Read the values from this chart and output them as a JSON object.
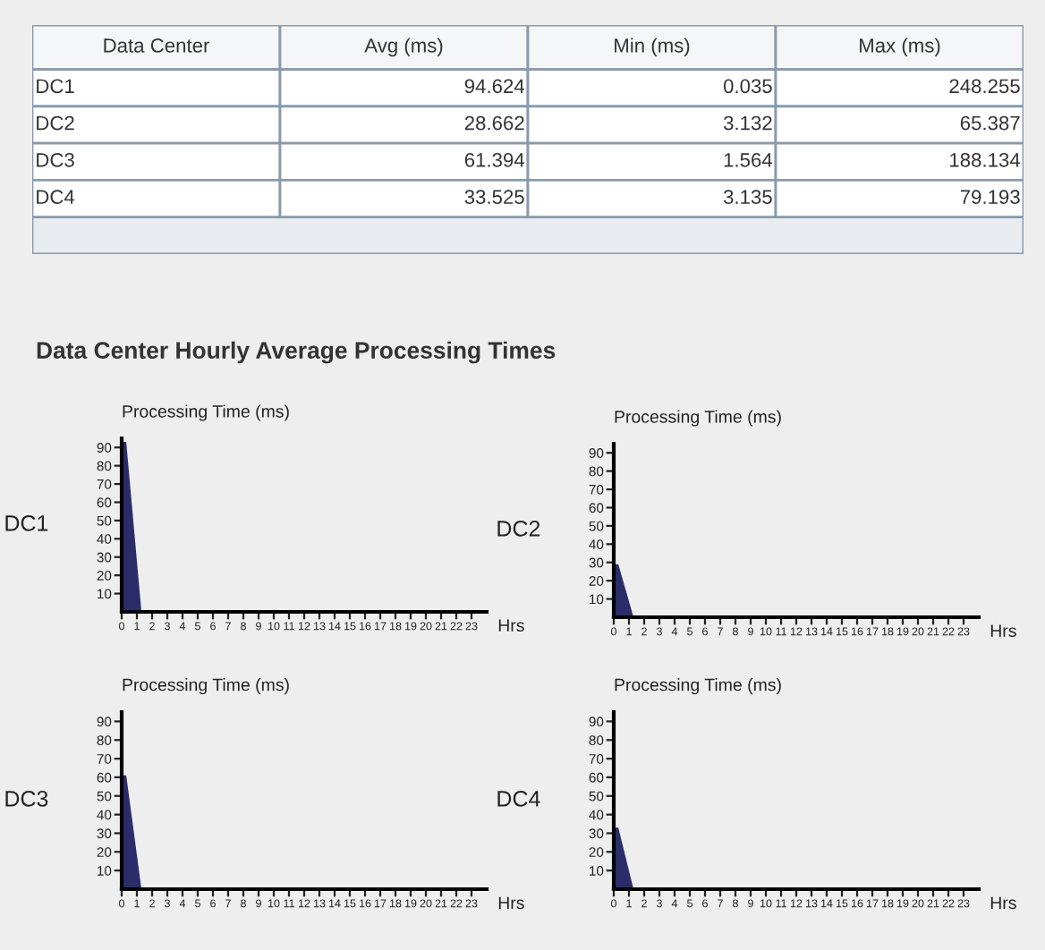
{
  "chart_data": [
    {
      "type": "other",
      "categories": [
        "Data Center",
        "Avg (ms)",
        "Min (ms)",
        "Max (ms)"
      ],
      "y_categories": [
        "DC1",
        "DC2",
        "DC3",
        "DC4"
      ],
      "cell_labels": [
        [
          "94.624",
          "0.035",
          "248.255"
        ],
        [
          "28.662",
          "3.132",
          "65.387"
        ],
        [
          "61.394",
          "1.564",
          "188.134"
        ],
        [
          "33.525",
          "3.135",
          "79.193"
        ]
      ]
    },
    {
      "type": "area",
      "title": "DC1",
      "annotations": [
        "Data Center Hourly Average Processing Times"
      ],
      "ylabel": "Processing Time (ms)",
      "xlabel": "Hrs",
      "x": [
        0,
        0.3,
        1.3,
        23
      ],
      "series": [
        {
          "color": "#2b2d6b",
          "values": [
            93,
            93,
            0,
            0
          ]
        }
      ],
      "xlim": [
        0,
        24
      ],
      "ylim": [
        0,
        95
      ],
      "xticks": [
        0,
        1,
        2,
        3,
        4,
        5,
        6,
        7,
        8,
        9,
        10,
        11,
        12,
        13,
        14,
        15,
        16,
        17,
        18,
        19,
        20,
        21,
        22,
        23
      ],
      "yticks": [
        10,
        20,
        30,
        40,
        50,
        60,
        70,
        80,
        90
      ]
    },
    {
      "type": "area",
      "title": "DC2",
      "ylabel": "Processing Time (ms)",
      "xlabel": "Hrs",
      "x": [
        0,
        0.3,
        1.3,
        23
      ],
      "series": [
        {
          "color": "#2b2d6b",
          "values": [
            29,
            29,
            0,
            0
          ]
        }
      ],
      "xlim": [
        0,
        24
      ],
      "ylim": [
        0,
        95
      ],
      "xticks": [
        0,
        1,
        2,
        3,
        4,
        5,
        6,
        7,
        8,
        9,
        10,
        11,
        12,
        13,
        14,
        15,
        16,
        17,
        18,
        19,
        20,
        21,
        22,
        23
      ],
      "yticks": [
        10,
        20,
        30,
        40,
        50,
        60,
        70,
        80,
        90
      ]
    },
    {
      "type": "area",
      "title": "DC3",
      "ylabel": "Processing Time (ms)",
      "xlabel": "Hrs",
      "x": [
        0,
        0.3,
        1.3,
        23
      ],
      "series": [
        {
          "color": "#2b2d6b",
          "values": [
            61,
            61,
            0,
            0
          ]
        }
      ],
      "xlim": [
        0,
        24
      ],
      "ylim": [
        0,
        95
      ],
      "xticks": [
        0,
        1,
        2,
        3,
        4,
        5,
        6,
        7,
        8,
        9,
        10,
        11,
        12,
        13,
        14,
        15,
        16,
        17,
        18,
        19,
        20,
        21,
        22,
        23
      ],
      "yticks": [
        10,
        20,
        30,
        40,
        50,
        60,
        70,
        80,
        90
      ]
    },
    {
      "type": "area",
      "title": "DC4",
      "ylabel": "Processing Time (ms)",
      "xlabel": "Hrs",
      "x": [
        0,
        0.3,
        1.3,
        23
      ],
      "series": [
        {
          "color": "#2b2d6b",
          "values": [
            33,
            33,
            0,
            0
          ]
        }
      ],
      "xlim": [
        0,
        24
      ],
      "ylim": [
        0,
        95
      ],
      "xticks": [
        0,
        1,
        2,
        3,
        4,
        5,
        6,
        7,
        8,
        9,
        10,
        11,
        12,
        13,
        14,
        15,
        16,
        17,
        18,
        19,
        20,
        21,
        22,
        23
      ],
      "yticks": [
        10,
        20,
        30,
        40,
        50,
        60,
        70,
        80,
        90
      ]
    }
  ]
}
